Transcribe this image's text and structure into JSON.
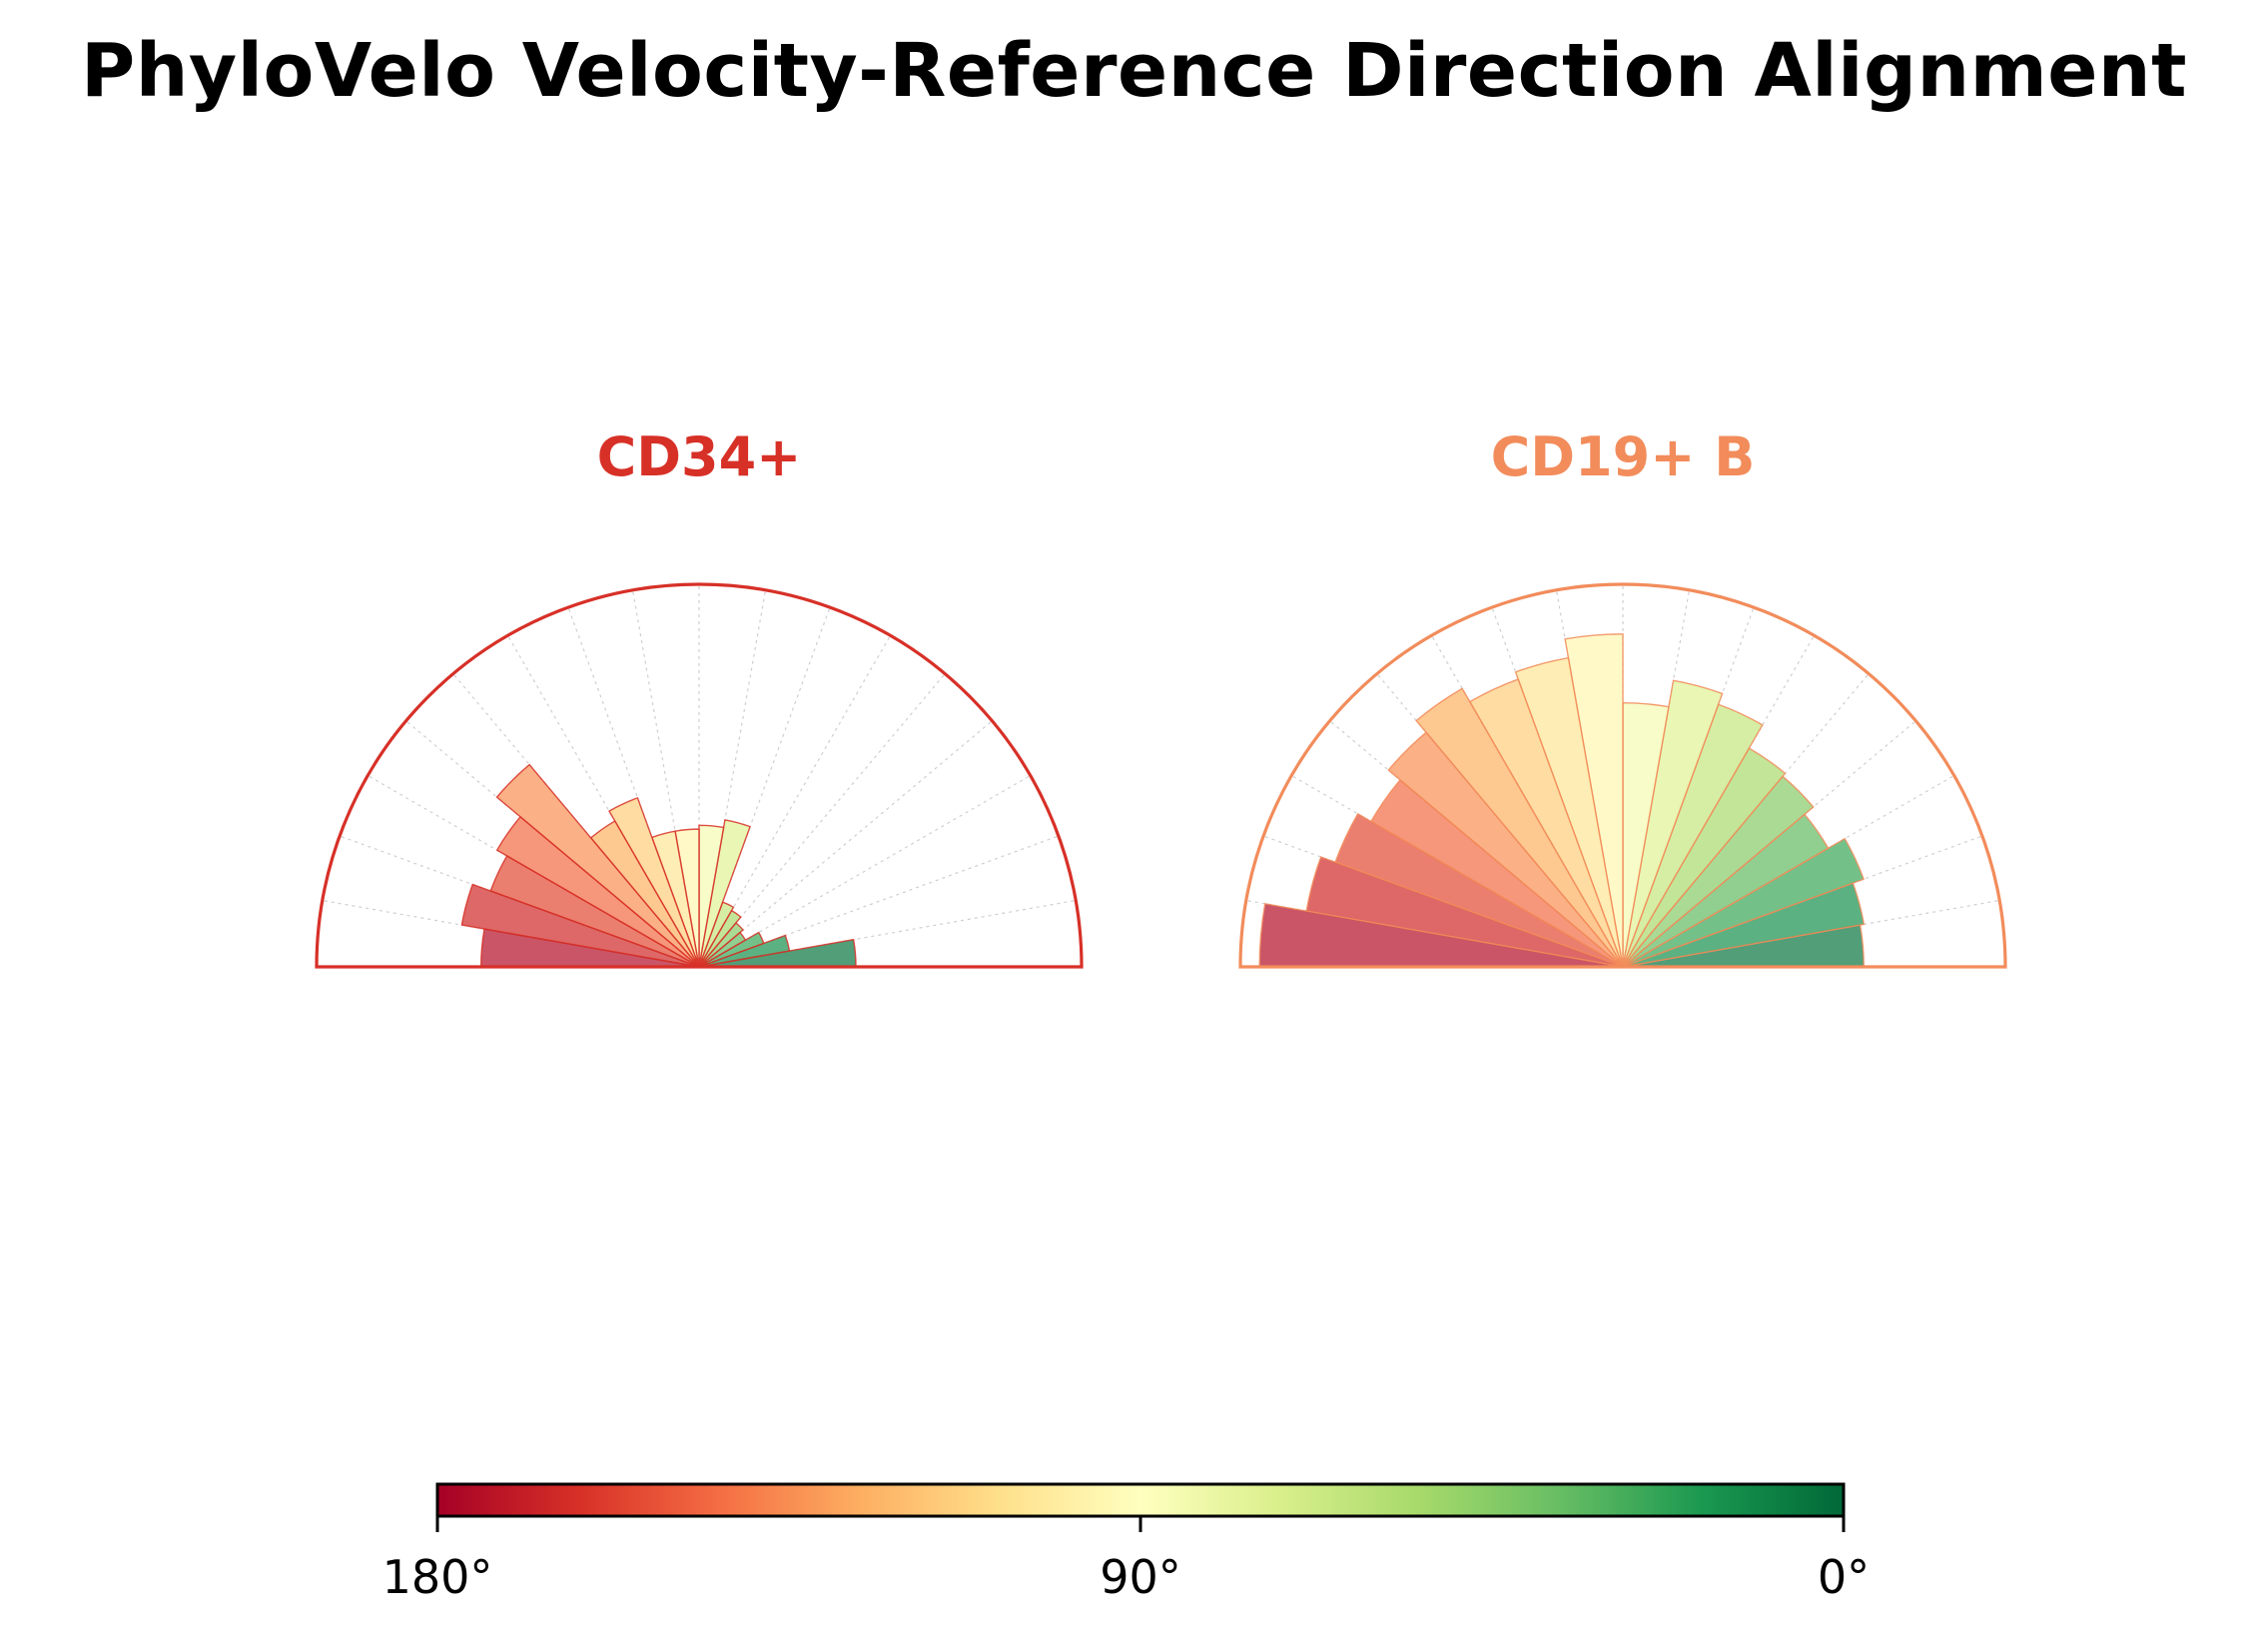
{
  "title": "PhyloVelo Velocity-Reference Direction Alignment",
  "chart_data": [
    {
      "type": "polar-bar",
      "panel_title": "CD34+",
      "panel_color": "#d73027",
      "theta_range_deg": [
        0,
        180
      ],
      "bin_width_deg": 10,
      "r_max": 1.0,
      "bins_center_deg": [
        5,
        15,
        25,
        35,
        45,
        55,
        65,
        75,
        85,
        95,
        105,
        115,
        125,
        135,
        145,
        155,
        165,
        175
      ],
      "values": [
        0.41,
        0.24,
        0.18,
        0.14,
        0.15,
        0.17,
        0.18,
        0.39,
        0.37,
        0.36,
        0.36,
        0.47,
        0.44,
        0.69,
        0.61,
        0.58,
        0.63,
        0.57
      ]
    },
    {
      "type": "polar-bar",
      "panel_title": "CD19+ B",
      "panel_color": "#f28c5b",
      "theta_range_deg": [
        0,
        180
      ],
      "bin_width_deg": 10,
      "r_max": 1.0,
      "bins_center_deg": [
        5,
        15,
        25,
        35,
        45,
        55,
        65,
        75,
        85,
        95,
        105,
        115,
        125,
        135,
        145,
        155,
        165,
        175
      ],
      "values": [
        0.63,
        0.64,
        0.67,
        0.62,
        0.65,
        0.66,
        0.73,
        0.76,
        0.69,
        0.87,
        0.82,
        0.8,
        0.84,
        0.8,
        0.76,
        0.8,
        0.84,
        0.95
      ]
    }
  ],
  "colorbar": {
    "colormap": "RdYlGn",
    "tick_labels": [
      "180°",
      "90°",
      "0°"
    ],
    "tick_values_deg": [
      180,
      90,
      0
    ],
    "colors": [
      "#a50026",
      "#d73027",
      "#f46d43",
      "#fdae61",
      "#fee08b",
      "#ffffbf",
      "#d9ef8b",
      "#a6d96a",
      "#66bd63",
      "#1a9850",
      "#006837"
    ]
  }
}
